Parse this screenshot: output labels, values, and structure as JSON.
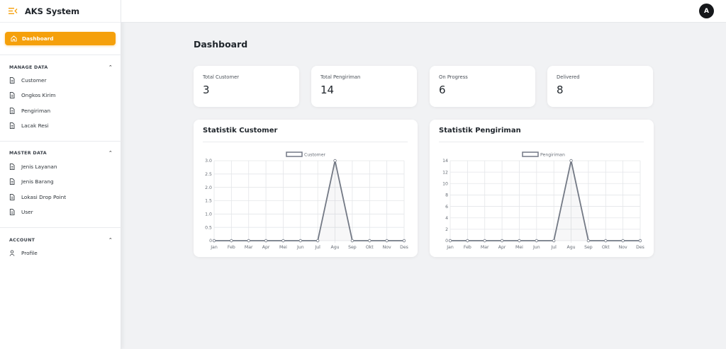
{
  "app": {
    "title": "AKS System",
    "avatar_initial": "A",
    "accent": "#f5a00b"
  },
  "sidebar": {
    "active_item": "Dashboard",
    "sections": [
      {
        "heading": "MANAGE DATA",
        "items": [
          "Customer",
          "Ongkos Kirim",
          "Pengiriman",
          "Lacak Resi"
        ]
      },
      {
        "heading": "MASTER DATA",
        "items": [
          "Jenis Layanan",
          "Jenis Barang",
          "Lokasi Drop Point",
          "User"
        ]
      },
      {
        "heading": "ACCOUNT",
        "items": [
          "Profile"
        ]
      }
    ]
  },
  "page": {
    "title": "Dashboard"
  },
  "stats": [
    {
      "label": "Total Customer",
      "value": "3"
    },
    {
      "label": "Total Pengiriman",
      "value": "14"
    },
    {
      "label": "On Progress",
      "value": "6"
    },
    {
      "label": "Delivered",
      "value": "8"
    }
  ],
  "chart_data": [
    {
      "type": "line",
      "title": "Statistik Customer",
      "categories": [
        "Jan",
        "Feb",
        "Mar",
        "Apr",
        "Mei",
        "Jun",
        "Jul",
        "Agu",
        "Sep",
        "Okt",
        "Nov",
        "Des"
      ],
      "series": [
        {
          "name": "Customer",
          "values": [
            0,
            0,
            0,
            0,
            0,
            0,
            0,
            3,
            0,
            0,
            0,
            0
          ]
        }
      ],
      "ylim": [
        0,
        3
      ],
      "yticks": [
        "0",
        "0.5",
        "1.0",
        "1.5",
        "2.0",
        "2.5",
        "3.0"
      ],
      "grid": true,
      "legend": "top-center"
    },
    {
      "type": "line",
      "title": "Statistik Pengiriman",
      "categories": [
        "Jan",
        "Feb",
        "Mar",
        "Apr",
        "Mei",
        "Jun",
        "Jul",
        "Agu",
        "Sep",
        "Okt",
        "Nov",
        "Des"
      ],
      "series": [
        {
          "name": "Pengiriman",
          "values": [
            0,
            0,
            0,
            0,
            0,
            0,
            0,
            14,
            0,
            0,
            0,
            0
          ]
        }
      ],
      "ylim": [
        0,
        14
      ],
      "yticks": [
        "0",
        "2",
        "4",
        "6",
        "8",
        "10",
        "12",
        "14"
      ],
      "grid": true,
      "legend": "top-center"
    }
  ]
}
